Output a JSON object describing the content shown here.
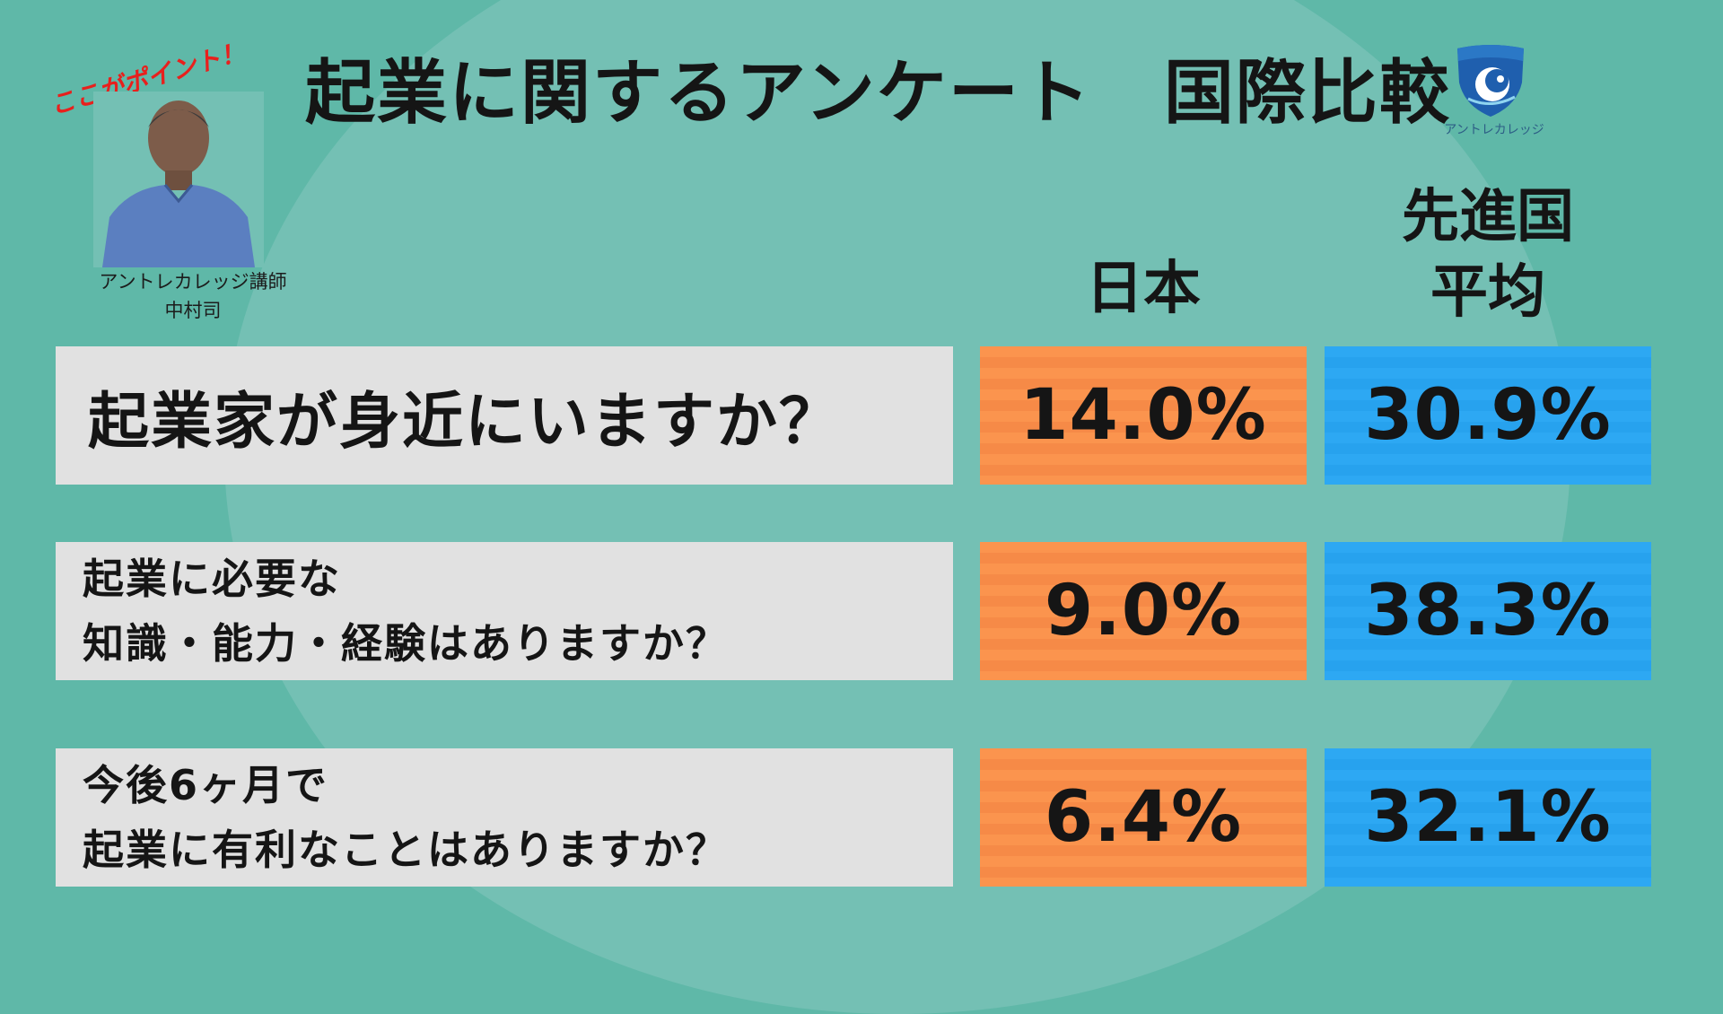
{
  "page": {
    "title": "起業に関するアンケート　国際比較",
    "brand": "アントレカレッジ",
    "point_label": "ここがポイント！",
    "presenter_role": "アントレカレッジ講師",
    "presenter_name": "中村司"
  },
  "colors": {
    "background": "#5fb8a8",
    "japan": "#fb944e",
    "advanced": "#2da8f3",
    "question_box": "#e1e1e1"
  },
  "chart_data": {
    "type": "table",
    "columns": [
      "日本",
      "先進国\n平均"
    ],
    "rows": [
      {
        "question": "起業家が身近にいますか？",
        "japan": "14.0%",
        "advanced": "30.9%"
      },
      {
        "question": "起業に必要な\n知識・能力・経験はありますか？",
        "japan": "9.0%",
        "advanced": "38.3%"
      },
      {
        "question": "今後6ヶ月で\n起業に有利なことはありますか？",
        "japan": "6.4%",
        "advanced": "32.1%"
      }
    ]
  }
}
